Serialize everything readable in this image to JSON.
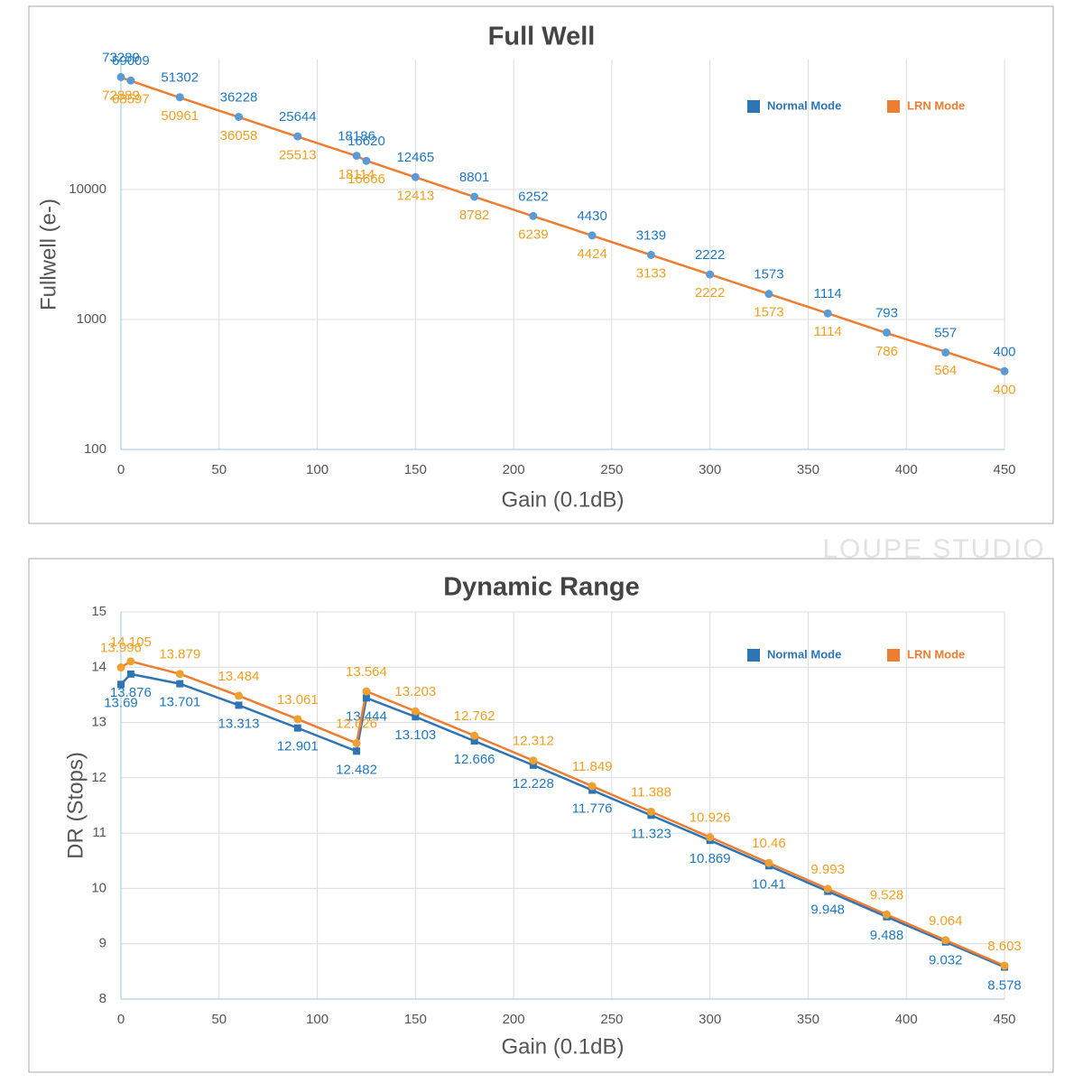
{
  "chart_data": [
    {
      "type": "line",
      "title": "Full Well",
      "xlabel": "Gain (0.1dB)",
      "ylabel": "Fullwell (e-)",
      "yscale": "log",
      "grid": true,
      "legend": "upper right",
      "x": [
        0,
        5,
        30,
        60,
        90,
        120,
        125,
        150,
        180,
        210,
        240,
        270,
        300,
        330,
        360,
        390,
        420,
        450
      ],
      "xlim": [
        0,
        450
      ],
      "xticks": [
        0,
        50,
        100,
        150,
        200,
        250,
        300,
        350,
        400,
        450
      ],
      "ylim": [
        100,
        100000
      ],
      "yticks": [
        100,
        1000,
        10000
      ],
      "series": [
        {
          "name": "Normal Mode",
          "color": "#2e75b6",
          "marker": "circle",
          "line": false,
          "values": [
            73289,
            69009,
            51302,
            36228,
            25644,
            18186,
            16620,
            12465,
            8801,
            6252,
            4430,
            3139,
            2222,
            1573,
            1114,
            793,
            557,
            400
          ]
        },
        {
          "name": "LRN Mode",
          "color": "#ed7d31",
          "marker": "none",
          "line": true,
          "values": [
            72889,
            68597,
            50961,
            36058,
            25513,
            18114,
            16666,
            12413,
            8782,
            6239,
            4424,
            3133,
            2222,
            1573,
            1114,
            786,
            564,
            400
          ]
        }
      ]
    },
    {
      "type": "line",
      "title": "Dynamic Range",
      "xlabel": "Gain (0.1dB)",
      "ylabel": "DR (Stops)",
      "yscale": "linear",
      "grid": true,
      "legend": "upper right",
      "x": [
        0,
        5,
        30,
        60,
        90,
        120,
        125,
        150,
        180,
        210,
        240,
        270,
        300,
        330,
        360,
        390,
        420,
        450
      ],
      "xlim": [
        0,
        450
      ],
      "xticks": [
        0,
        50,
        100,
        150,
        200,
        250,
        300,
        350,
        400,
        450
      ],
      "ylim": [
        8,
        15
      ],
      "yticks": [
        8,
        9,
        10,
        11,
        12,
        13,
        14,
        15
      ],
      "series": [
        {
          "name": "Normal Mode",
          "color": "#2e75b6",
          "marker": "square",
          "line": true,
          "values": [
            13.69,
            13.876,
            13.701,
            13.313,
            12.901,
            12.482,
            13.444,
            13.103,
            12.666,
            12.228,
            11.776,
            11.323,
            10.869,
            10.41,
            9.948,
            9.488,
            9.032,
            8.578
          ]
        },
        {
          "name": "LRN Mode",
          "color": "#ed7d31",
          "marker": "circle",
          "line": true,
          "values": [
            13.996,
            14.105,
            13.879,
            13.484,
            13.061,
            12.626,
            13.564,
            13.203,
            12.762,
            12.312,
            11.849,
            11.388,
            10.926,
            10.46,
            9.993,
            9.528,
            9.064,
            8.603
          ]
        }
      ]
    }
  ],
  "watermark": "LOUPE STUDIO"
}
